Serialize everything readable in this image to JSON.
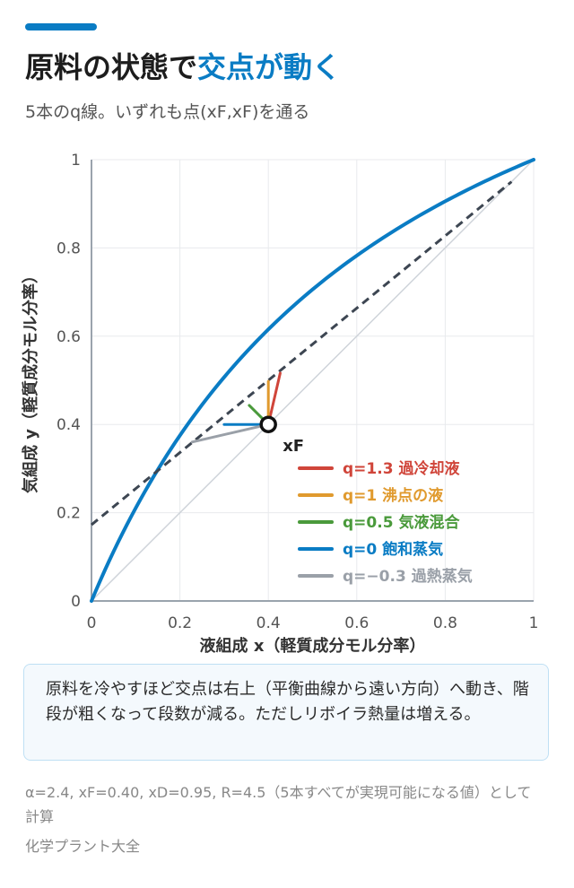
{
  "header": {
    "title_main": "原料の状態で",
    "title_highlight": "交点が動く",
    "subtitle": "5本のq線。いずれも点(xF,xF)を通る",
    "accent_color": "#0a7cc4"
  },
  "chart_data": {
    "type": "line",
    "xlabel": "液組成 x（軽質成分モル分率）",
    "ylabel": "気組成 y（軽質成分モル分率）",
    "xlim": [
      0,
      1
    ],
    "ylim": [
      0,
      1
    ],
    "x_ticks": [
      "0",
      "0.2",
      "0.4",
      "0.6",
      "0.8",
      "1"
    ],
    "y_ticks": [
      "0",
      "0.2",
      "0.4",
      "0.6",
      "0.8",
      "1"
    ],
    "grid": true,
    "legend_position": "bottom-right",
    "feed_point": {
      "label": "xF",
      "x": 0.4,
      "y": 0.4
    },
    "equilibrium_curve": {
      "alpha": 2.4,
      "color": "#0a7cc4"
    },
    "diagonal": {
      "points": [
        [
          0,
          0
        ],
        [
          1,
          1
        ]
      ],
      "color": "#cfd4da"
    },
    "operating_line": {
      "points": [
        [
          0,
          0.1727
        ],
        [
          0.95,
          0.95
        ]
      ],
      "color": "#3d4652"
    },
    "series": [
      {
        "name": "q=1.3 過冷却液",
        "color": "#d0453a",
        "points": [
          [
            0.4,
            0.4
          ],
          [
            0.4268,
            0.5163
          ]
        ]
      },
      {
        "name": "q=1 沸点の液",
        "color": "#e09a2e",
        "points": [
          [
            0.4,
            0.4
          ],
          [
            0.4,
            0.4978
          ]
        ]
      },
      {
        "name": "q=0.5 気液混合",
        "color": "#4a9a3b",
        "points": [
          [
            0.4,
            0.4
          ],
          [
            0.3568,
            0.4432
          ]
        ]
      },
      {
        "name": "q=0 飽和蒸気",
        "color": "#0a7cc4",
        "points": [
          [
            0.4,
            0.4
          ],
          [
            0.3,
            0.4
          ]
        ]
      },
      {
        "name": "q=−0.3 過熱蒸気",
        "color": "#9aa0a8",
        "points": [
          [
            0.4,
            0.4
          ],
          [
            0.2275,
            0.3602
          ]
        ]
      }
    ]
  },
  "note": "原料を冷やすほど交点は右上（平衡曲線から遠い方向）へ動き、階段が粗くなって段数が減る。ただしリボイラ熱量は増える。",
  "footnote": "α=2.4, xF=0.40, xD=0.95, R=4.5（5本すべてが実現可能になる値）として計算",
  "source": "化学プラント大全"
}
